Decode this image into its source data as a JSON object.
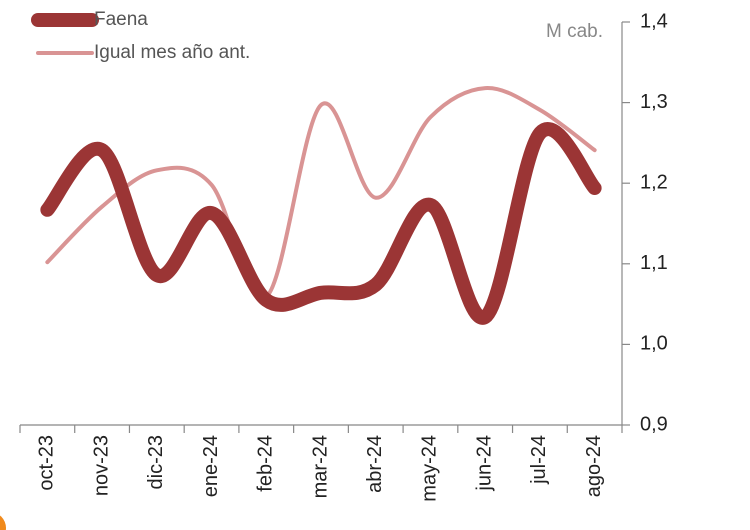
{
  "chart_data": {
    "type": "line",
    "annotation": "M cab.",
    "categories": [
      "oct-23",
      "nov-23",
      "dic-23",
      "ene-24",
      "feb-24",
      "mar-24",
      "abr-24",
      "may-24",
      "jun-24",
      "jul-24",
      "ago-24"
    ],
    "series": [
      {
        "name": "Faena",
        "color": "#9b3535",
        "values": [
          1.167,
          1.241,
          1.086,
          1.163,
          1.055,
          1.064,
          1.074,
          1.173,
          1.034,
          1.262,
          1.194
        ]
      },
      {
        "name": "Igual mes año ant.",
        "color": "#d99494",
        "values": [
          1.102,
          1.171,
          1.216,
          1.198,
          1.059,
          1.297,
          1.182,
          1.282,
          1.318,
          1.291,
          1.241
        ]
      }
    ],
    "ylim": [
      0.9,
      1.4
    ],
    "yticks": [
      {
        "value": 0.9,
        "label": "0,9"
      },
      {
        "value": 1.0,
        "label": "1,0"
      },
      {
        "value": 1.1,
        "label": "1,1"
      },
      {
        "value": 1.2,
        "label": "1,2"
      },
      {
        "value": 1.3,
        "label": "1,3"
      },
      {
        "value": 1.4,
        "label": "1,4"
      }
    ],
    "y_axis_side": "right",
    "legend": "top-left",
    "grid": false
  }
}
